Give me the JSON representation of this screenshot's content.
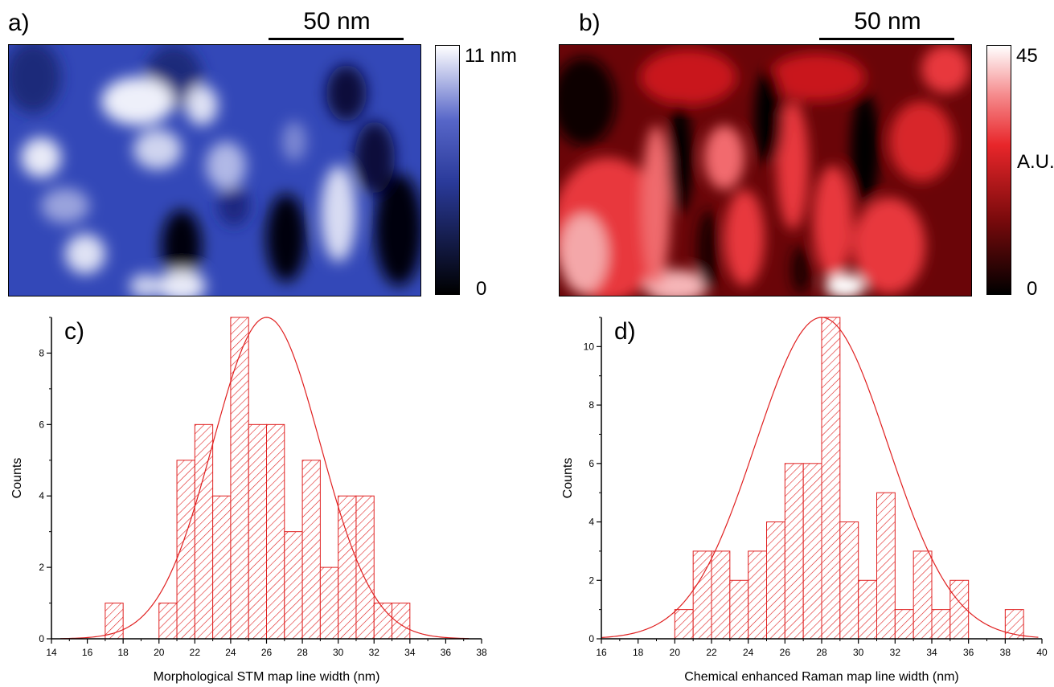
{
  "panels": {
    "a": {
      "label": "a)",
      "scalebar": "50 nm",
      "cbar_max": "11 nm",
      "cbar_min": "0",
      "cbar_colors": [
        "#000000",
        "#3a4fc4",
        "#ffffff"
      ]
    },
    "b": {
      "label": "b)",
      "scalebar": "50 nm",
      "cbar_max": "45",
      "cbar_mid": "A.U.",
      "cbar_min": "0",
      "cbar_colors": [
        "#000000",
        "#e8262a",
        "#ffffff"
      ]
    },
    "c": {
      "label": "c)"
    },
    "d": {
      "label": "d)"
    }
  },
  "chart_data": [
    {
      "type": "bar",
      "panel": "c",
      "xlabel": "Morphological STM map line width (nm)",
      "ylabel": "Counts",
      "xlim": [
        14,
        38
      ],
      "ylim": [
        0,
        9
      ],
      "xticks": [
        14,
        16,
        18,
        20,
        22,
        24,
        26,
        28,
        30,
        32,
        34,
        36,
        38
      ],
      "yticks": [
        0,
        2,
        4,
        6,
        8
      ],
      "bin_width": 1,
      "bins": [
        {
          "x": 17,
          "count": 1
        },
        {
          "x": 20,
          "count": 1
        },
        {
          "x": 21,
          "count": 5
        },
        {
          "x": 22,
          "count": 6
        },
        {
          "x": 23,
          "count": 4
        },
        {
          "x": 24,
          "count": 9
        },
        {
          "x": 25,
          "count": 6
        },
        {
          "x": 26,
          "count": 6
        },
        {
          "x": 27,
          "count": 3
        },
        {
          "x": 28,
          "count": 5
        },
        {
          "x": 29,
          "count": 2
        },
        {
          "x": 30,
          "count": 4
        },
        {
          "x": 31,
          "count": 4
        },
        {
          "x": 32,
          "count": 1
        },
        {
          "x": 33,
          "count": 1
        }
      ],
      "fit": {
        "type": "gaussian",
        "center": 26,
        "amplitude": 9,
        "sigma": 3.0,
        "range": [
          14.5,
          37.3
        ]
      },
      "bar_color": "#e02020"
    },
    {
      "type": "bar",
      "panel": "d",
      "xlabel": "Chemical enhanced Raman map line width (nm)",
      "ylabel": "Counts",
      "xlim": [
        16,
        40
      ],
      "ylim": [
        0,
        11
      ],
      "xticks": [
        16,
        18,
        20,
        22,
        24,
        26,
        28,
        30,
        32,
        34,
        36,
        38,
        40
      ],
      "yticks": [
        0,
        2,
        4,
        6,
        8,
        10
      ],
      "bin_width": 1,
      "bins": [
        {
          "x": 20,
          "count": 1
        },
        {
          "x": 21,
          "count": 3
        },
        {
          "x": 22,
          "count": 3
        },
        {
          "x": 23,
          "count": 2
        },
        {
          "x": 24,
          "count": 3
        },
        {
          "x": 25,
          "count": 4
        },
        {
          "x": 26,
          "count": 6
        },
        {
          "x": 27,
          "count": 6
        },
        {
          "x": 28,
          "count": 11
        },
        {
          "x": 29,
          "count": 4
        },
        {
          "x": 30,
          "count": 2
        },
        {
          "x": 31,
          "count": 5
        },
        {
          "x": 32,
          "count": 1
        },
        {
          "x": 33,
          "count": 3
        },
        {
          "x": 34,
          "count": 1
        },
        {
          "x": 35,
          "count": 2
        },
        {
          "x": 38,
          "count": 1
        }
      ],
      "fit": {
        "type": "gaussian",
        "center": 28,
        "amplitude": 11,
        "sigma": 3.6,
        "range": [
          16,
          39.8
        ]
      },
      "bar_color": "#e02020"
    }
  ]
}
